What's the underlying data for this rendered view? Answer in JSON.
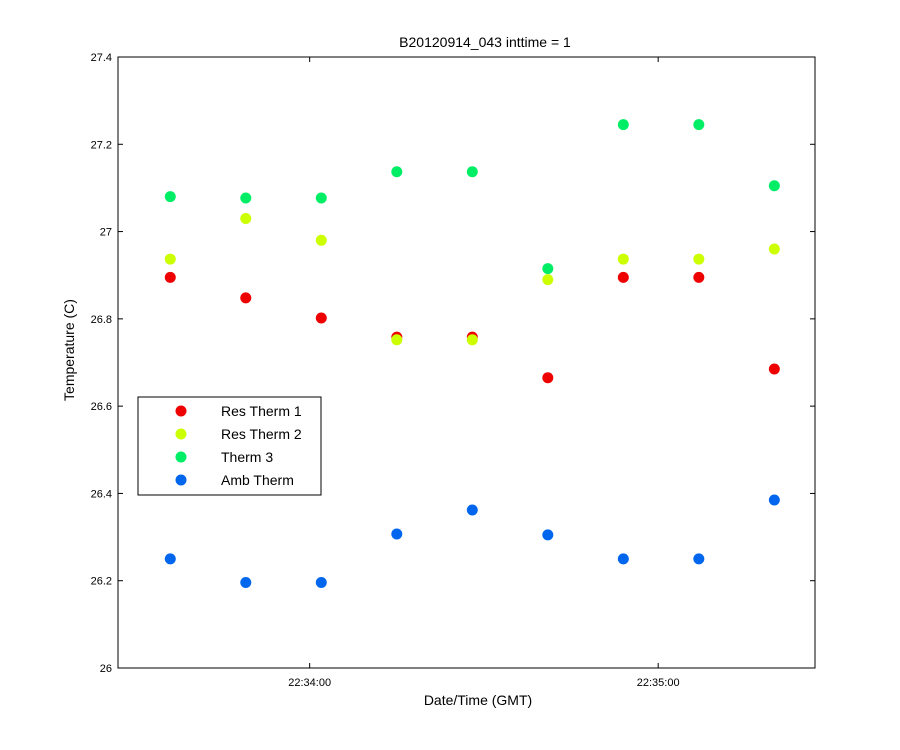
{
  "chart_data": {
    "type": "scatter",
    "title": "B20120914_043 inttime = 1",
    "xlabel": "Date/Time (GMT)",
    "ylabel": "Temperature (C)",
    "xlim": [
      "22:33:27",
      "22:35:27"
    ],
    "ylim": [
      26.0,
      27.4
    ],
    "x_ticks": [
      "22:34:00",
      "22:35:00"
    ],
    "y_ticks": [
      "26",
      "26.2",
      "26.4",
      "26.6",
      "26.8",
      "27",
      "27.2",
      "27.4"
    ],
    "grid": false,
    "legend_position": "middle-left",
    "x": [
      "22:33:36",
      "22:33:49",
      "22:34:02",
      "22:34:15",
      "22:34:28",
      "22:34:41",
      "22:34:54",
      "22:35:07",
      "22:35:20"
    ],
    "series": [
      {
        "name": "Res Therm 1",
        "color": "#ee0000",
        "values": [
          26.895,
          26.848,
          26.802,
          26.758,
          26.758,
          26.665,
          26.895,
          26.895,
          26.685
        ]
      },
      {
        "name": "Res Therm 2",
        "color": "#ccff00",
        "values": [
          26.937,
          27.03,
          26.98,
          26.752,
          26.752,
          26.89,
          26.937,
          26.937,
          26.96
        ]
      },
      {
        "name": "Therm 3",
        "color": "#00ee66",
        "values": [
          27.08,
          27.077,
          27.077,
          27.137,
          27.137,
          26.915,
          27.245,
          27.245,
          27.105
        ]
      },
      {
        "name": "Amb Therm",
        "color": "#0066ee",
        "values": [
          26.25,
          26.196,
          26.196,
          26.307,
          26.362,
          26.305,
          26.25,
          26.25,
          26.385
        ]
      }
    ]
  }
}
